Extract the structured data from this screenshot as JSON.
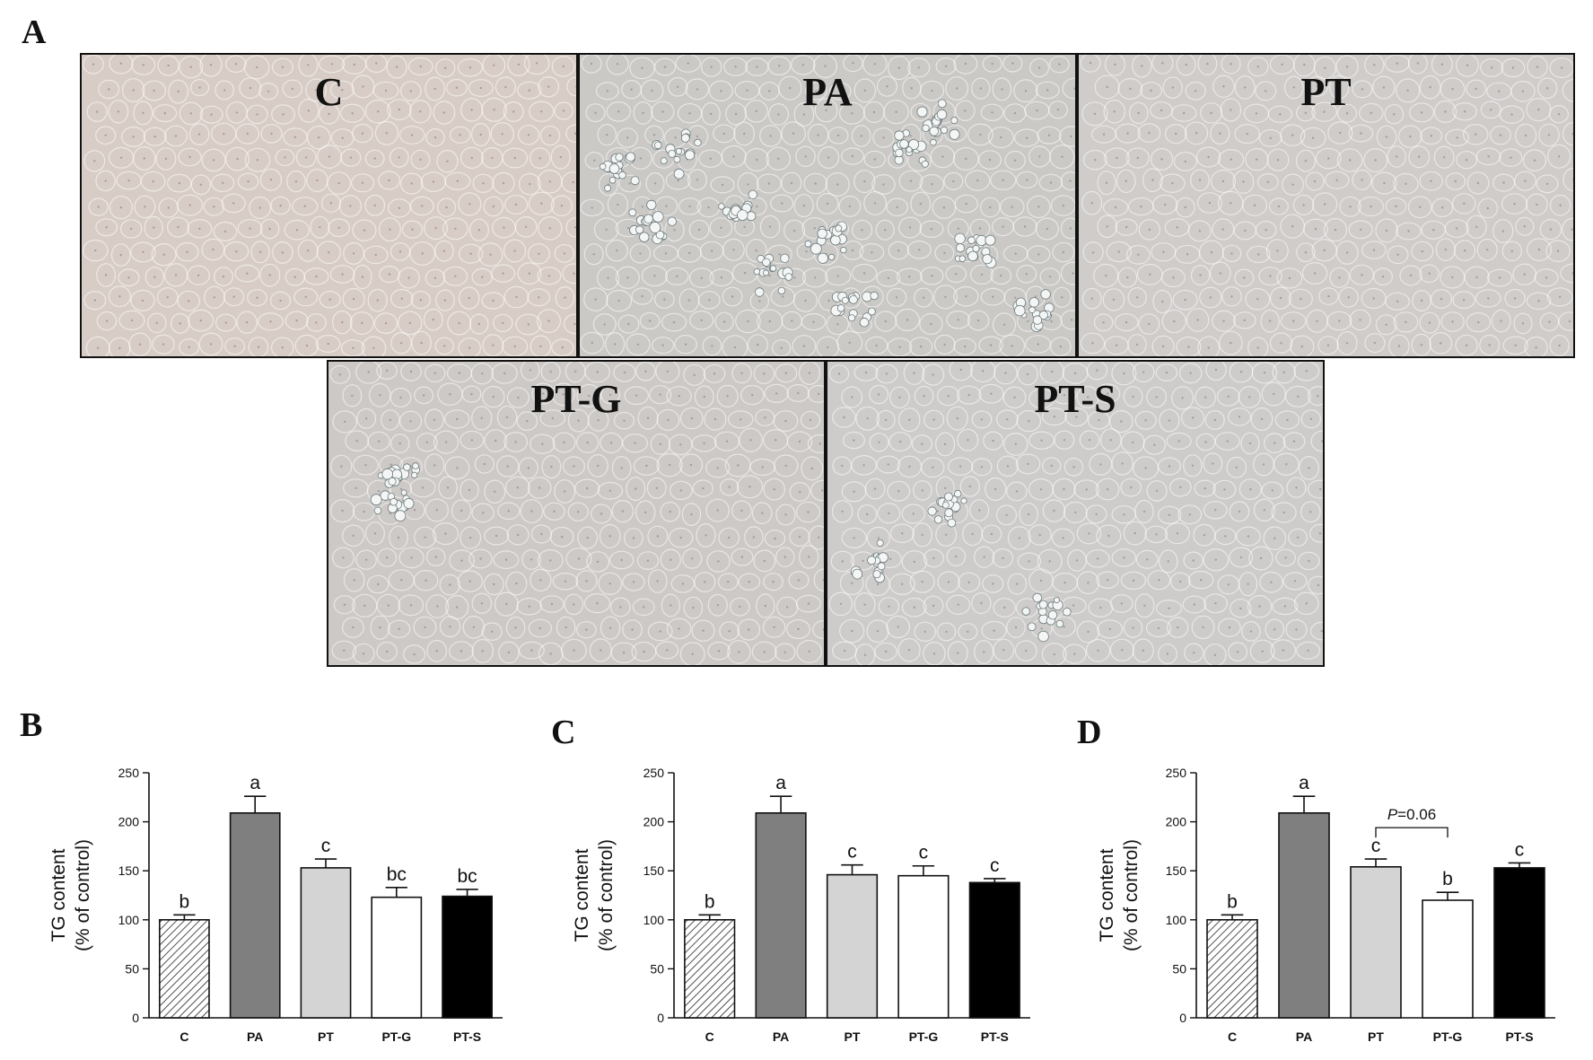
{
  "figure": {
    "panel_letters": [
      "A",
      "B",
      "C",
      "D"
    ],
    "micrographs": [
      {
        "label": "C",
        "tint": "#d8cdc6"
      },
      {
        "label": "PA",
        "tint": "#cbc9c6"
      },
      {
        "label": "PT",
        "tint": "#cfccca"
      },
      {
        "label": "PT-G",
        "tint": "#cdc9c6"
      },
      {
        "label": "PT-S",
        "tint": "#ceccca"
      }
    ]
  },
  "chart_data": [
    {
      "type": "bar",
      "panel": "B",
      "categories": [
        "C",
        "PA",
        "PT",
        "PT-G",
        "PT-S"
      ],
      "values": [
        100,
        209,
        153,
        123,
        124
      ],
      "errors": [
        5,
        17,
        9,
        10,
        7
      ],
      "sig_letters": [
        "b",
        "a",
        "c",
        "bc",
        "bc"
      ],
      "ylabel_lines": [
        "TG content",
        "(% of control)"
      ],
      "ylim": [
        0,
        250
      ],
      "yticks": [
        0,
        50,
        100,
        150,
        200,
        250
      ],
      "fills": [
        "hatch",
        "#7f7f7f",
        "#d4d4d4",
        "#ffffff",
        "#000000"
      ]
    },
    {
      "type": "bar",
      "panel": "C",
      "categories": [
        "C",
        "PA",
        "PT",
        "PT-G",
        "PT-S"
      ],
      "values": [
        100,
        209,
        146,
        145,
        138
      ],
      "errors": [
        5,
        17,
        10,
        10,
        4
      ],
      "sig_letters": [
        "b",
        "a",
        "c",
        "c",
        "c"
      ],
      "ylabel_lines": [
        "TG content",
        "(% of control)"
      ],
      "ylim": [
        0,
        250
      ],
      "yticks": [
        0,
        50,
        100,
        150,
        200,
        250
      ],
      "fills": [
        "hatch",
        "#7f7f7f",
        "#d4d4d4",
        "#ffffff",
        "#000000"
      ]
    },
    {
      "type": "bar",
      "panel": "D",
      "categories": [
        "C",
        "PA",
        "PT",
        "PT-G",
        "PT-S"
      ],
      "values": [
        100,
        209,
        154,
        120,
        153
      ],
      "errors": [
        5,
        17,
        8,
        8,
        5
      ],
      "sig_letters": [
        "b",
        "a",
        "c",
        "b",
        "c"
      ],
      "ylabel_lines": [
        "TG content",
        "(% of control)"
      ],
      "ylim": [
        0,
        250
      ],
      "yticks": [
        0,
        50,
        100,
        150,
        200,
        250
      ],
      "fills": [
        "hatch",
        "#7f7f7f",
        "#d4d4d4",
        "#ffffff",
        "#000000"
      ],
      "comparison": {
        "from": "PT",
        "to": "PT-G",
        "p_symbol": "P",
        "p_rest": "=0.06"
      }
    }
  ]
}
